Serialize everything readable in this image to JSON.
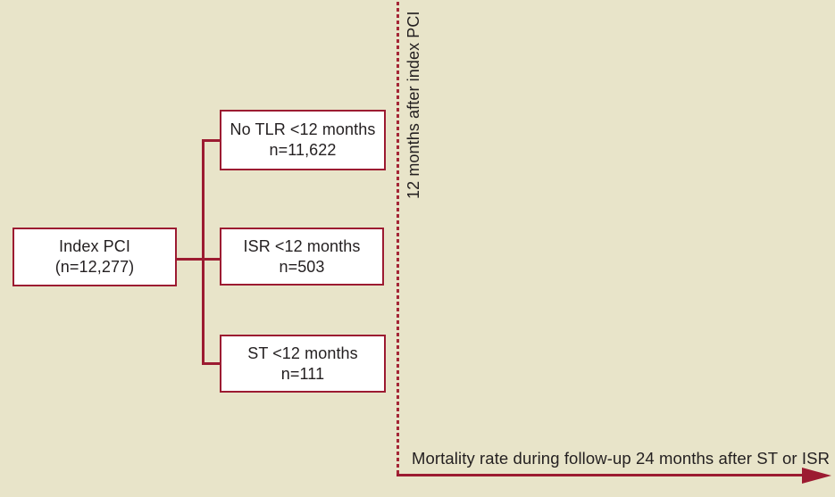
{
  "colors": {
    "background": "#e8e4c9",
    "accent_maroon": "#9c1b31",
    "dashed_line": "#a42636",
    "box_fill": "#ffffff",
    "text": "#231f20"
  },
  "flowchart": {
    "index_pci": {
      "line1": "Index PCI",
      "line2": "(n=12,277)"
    },
    "no_tlr": {
      "line1": "No TLR <12 months",
      "line2": "n=11,622"
    },
    "isr": {
      "line1": "ISR <12 months",
      "line2": "n=503"
    },
    "st": {
      "line1": "ST <12 months",
      "line2": "n=111"
    }
  },
  "annotations": {
    "vertical_timeline_label": "12 months after index PCI",
    "horizontal_axis_label": "Mortality rate during follow-up 24 months after ST or ISR"
  }
}
